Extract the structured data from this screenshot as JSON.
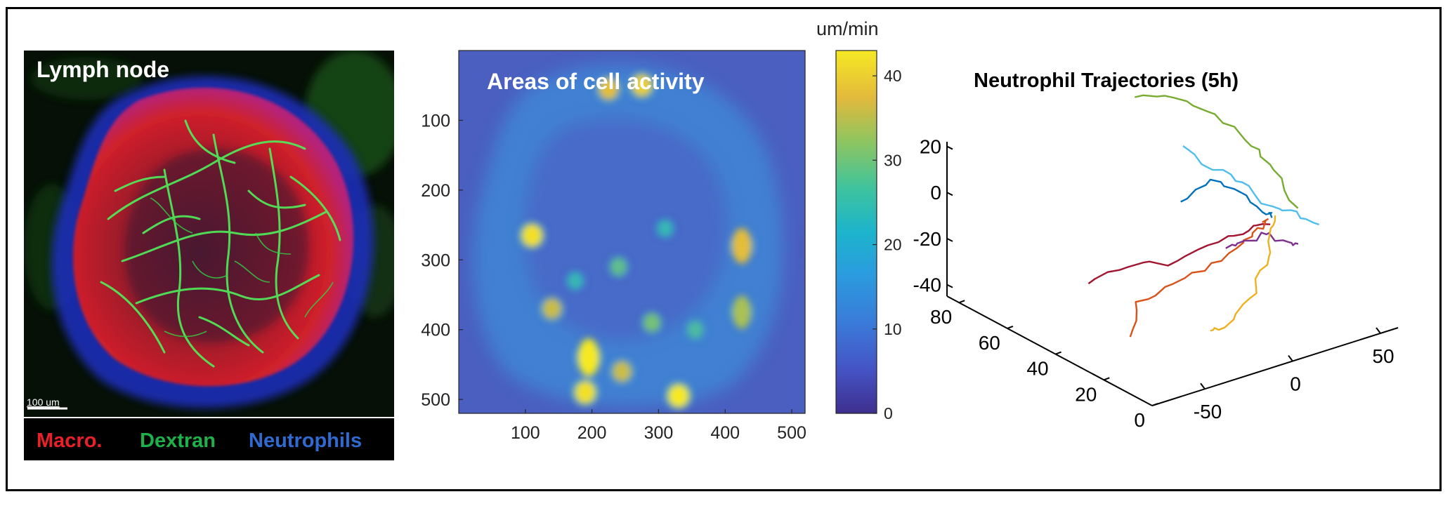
{
  "panel_a": {
    "title": "Lymph node",
    "scale_bar_label": "100 um",
    "legend": [
      {
        "label": "Macro.",
        "color": "#e8202a"
      },
      {
        "label": "Dextran",
        "color": "#1db14b"
      },
      {
        "label": "Neutrophils",
        "color": "#2e6ad1"
      }
    ]
  },
  "panel_b": {
    "title": "Areas of cell activity",
    "colorbar_unit": "um/min",
    "colorbar_ticks": [
      "0",
      "10",
      "20",
      "30",
      "40"
    ],
    "x_ticks": [
      "100",
      "200",
      "300",
      "400",
      "500"
    ],
    "y_ticks": [
      "100",
      "200",
      "300",
      "400",
      "500"
    ]
  },
  "panel_c": {
    "title": "Neutrophil Trajectories (5h)",
    "z_ticks": [
      "20",
      "0",
      "-20",
      "-40"
    ],
    "y_ticks": [
      "80",
      "60",
      "40",
      "20",
      "0"
    ],
    "x_ticks": [
      "50",
      "0",
      "-50"
    ]
  },
  "chart_data": [
    {
      "type": "heatmap",
      "title": "Areas of cell activity",
      "xlim": [
        0,
        520
      ],
      "ylim": [
        520,
        0
      ],
      "x_ticks": [
        100,
        200,
        300,
        400,
        500
      ],
      "y_ticks": [
        100,
        200,
        300,
        400,
        500
      ],
      "colorbar": {
        "label": "um/min",
        "range": [
          0,
          43
        ],
        "ticks": [
          0,
          10,
          20,
          30,
          40
        ],
        "colormap": "parula"
      },
      "hotspots": [
        {
          "x": 110,
          "y": 265,
          "value": 42
        },
        {
          "x": 140,
          "y": 370,
          "value": 36
        },
        {
          "x": 195,
          "y": 440,
          "value": 43
        },
        {
          "x": 190,
          "y": 490,
          "value": 42
        },
        {
          "x": 245,
          "y": 460,
          "value": 36
        },
        {
          "x": 225,
          "y": 55,
          "value": 38
        },
        {
          "x": 275,
          "y": 50,
          "value": 40
        },
        {
          "x": 330,
          "y": 495,
          "value": 43
        },
        {
          "x": 425,
          "y": 280,
          "value": 38
        },
        {
          "x": 425,
          "y": 375,
          "value": 34
        },
        {
          "x": 240,
          "y": 310,
          "value": 28
        },
        {
          "x": 290,
          "y": 390,
          "value": 30
        },
        {
          "x": 355,
          "y": 400,
          "value": 26
        },
        {
          "x": 310,
          "y": 255,
          "value": 24
        },
        {
          "x": 175,
          "y": 330,
          "value": 24
        }
      ]
    },
    {
      "type": "line",
      "title": "Neutrophil Trajectories (5h)",
      "projection": "3d",
      "xlim": [
        -80,
        60
      ],
      "ylim": [
        0,
        85
      ],
      "zlim": [
        -45,
        22
      ],
      "x_ticks": [
        -50,
        0,
        50
      ],
      "y_ticks": [
        0,
        20,
        40,
        60,
        80
      ],
      "z_ticks": [
        -40,
        -20,
        0,
        20
      ],
      "series": [
        {
          "color": "#77ac30",
          "points": [
            [
              20,
              80,
              20
            ],
            [
              35,
              75,
              19
            ],
            [
              45,
              65,
              15
            ],
            [
              52,
              55,
              5
            ],
            [
              55,
              48,
              -2
            ],
            [
              58,
              40,
              -15
            ]
          ]
        },
        {
          "color": "#a2142f",
          "points": [
            [
              -75,
              30,
              -10
            ],
            [
              -50,
              32,
              -10
            ],
            [
              -20,
              33,
              -15
            ],
            [
              10,
              38,
              -17
            ],
            [
              30,
              40,
              -18
            ],
            [
              45,
              42,
              -20
            ]
          ]
        },
        {
          "color": "#d95319",
          "points": [
            [
              -65,
              20,
              -30
            ],
            [
              -55,
              25,
              -20
            ],
            [
              -30,
              28,
              -20
            ],
            [
              -5,
              30,
              -18
            ],
            [
              20,
              35,
              -18
            ],
            [
              35,
              40,
              -18
            ],
            [
              48,
              45,
              -20
            ]
          ]
        },
        {
          "color": "#0072bd",
          "points": [
            [
              5,
              50,
              -5
            ],
            [
              15,
              45,
              5
            ],
            [
              25,
              40,
              0
            ],
            [
              35,
              38,
              -10
            ],
            [
              45,
              42,
              -15
            ],
            [
              50,
              45,
              -20
            ]
          ]
        },
        {
          "color": "#4dbeee",
          "points": [
            [
              20,
              60,
              10
            ],
            [
              30,
              55,
              0
            ],
            [
              40,
              50,
              -5
            ],
            [
              50,
              45,
              -15
            ],
            [
              60,
              42,
              -18
            ],
            [
              70,
              40,
              -25
            ]
          ]
        },
        {
          "color": "#7e2f8e",
          "points": [
            [
              10,
              35,
              -18
            ],
            [
              25,
              38,
              -20
            ],
            [
              40,
              40,
              -22
            ],
            [
              55,
              42,
              -30
            ],
            [
              65,
              45,
              -35
            ]
          ]
        },
        {
          "color": "#edb120",
          "points": [
            [
              -40,
              5,
              -25
            ],
            [
              -25,
              10,
              -30
            ],
            [
              0,
              18,
              -28
            ],
            [
              20,
              25,
              -22
            ],
            [
              35,
              35,
              -18
            ],
            [
              45,
              40,
              -15
            ]
          ]
        }
      ]
    }
  ]
}
